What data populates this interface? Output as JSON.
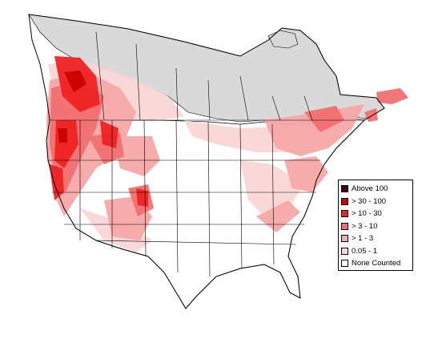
{
  "legend": {
    "entries": [
      {
        "label": "Above 100",
        "color": "#4a0000"
      },
      {
        "label": "> 30 - 100",
        "color": "#c80000"
      },
      {
        "label": "> 10 - 30",
        "color": "#ee2222"
      },
      {
        "label": "> 3 - 10",
        "color": "#f27070"
      },
      {
        "label": "> 1 - 3",
        "color": "#f7a8a8"
      },
      {
        "label": " 0.05 - 1",
        "color": "#fbd6d6"
      },
      {
        "label": "None Counted",
        "color": "#ffffff"
      }
    ]
  },
  "colors": {
    "uncounted_region": "#d9d9d9",
    "border_lines": "#000000"
  }
}
